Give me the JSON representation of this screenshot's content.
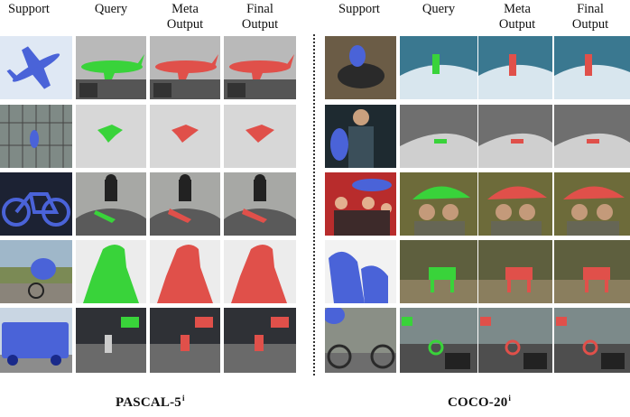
{
  "left_panel": {
    "headers": [
      "Support",
      "Query",
      "Meta\nOutput",
      "Final\nOutput"
    ],
    "caption_main": "PASCAL-5",
    "caption_sup": "i"
  },
  "right_panel": {
    "headers": [
      "Support",
      "Query",
      "Meta\nOutput",
      "Final\nOutput"
    ],
    "caption_main": "COCO-20",
    "caption_sup": "i"
  },
  "colors": {
    "query_mask": "#39d33a",
    "output_mask": "#e0504a",
    "support_mask": "#4a63d8"
  },
  "rows_left": [
    "airplane",
    "bird",
    "bicycle",
    "person",
    "bus"
  ],
  "rows_right": [
    "person-surf",
    "person-surf-2",
    "umbrella",
    "zebra",
    "bicycle"
  ]
}
